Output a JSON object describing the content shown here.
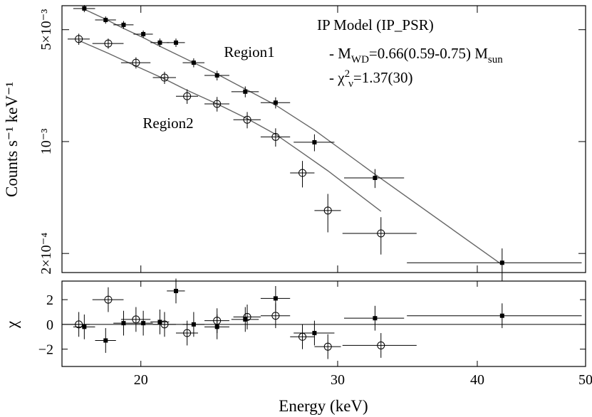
{
  "chart_data": {
    "type": "scatter",
    "xlabel": "Energy (keV)",
    "ylabel": "Counts s⁻¹ keV⁻¹",
    "xscale": "log",
    "yscale": "log",
    "xlim": [
      17,
      50
    ],
    "xticks": [
      20,
      30,
      40,
      50
    ],
    "ylim": [
      0.000152,
      0.00706
    ],
    "yticks": [
      {
        "value": 0.005,
        "label": "5×10⁻³"
      },
      {
        "value": 0.001,
        "label": "10⁻³"
      },
      {
        "value": 0.0002,
        "label": "2×10⁻⁴"
      }
    ],
    "annotation": {
      "title": "IP Model (IP_PSR)",
      "line1": [
        "- M",
        "WD",
        "=0.66(0.59-0.75) M",
        "sun"
      ],
      "line2": [
        "- χ",
        "2",
        "ν",
        "=1.37(30)"
      ]
    },
    "model_color": "#666666",
    "residual_panel": {
      "ylabel": "χ",
      "ylim": [
        -3.4,
        3.5
      ],
      "yticks": [
        {
          "value": 2,
          "label": "2"
        },
        0,
        {
          "value": -2,
          "label": "−2"
        }
      ]
    },
    "series": [
      {
        "name": "Region1",
        "marker": "square",
        "color": "#000000",
        "x": [
          17.8,
          18.6,
          19.3,
          20.1,
          20.8,
          21.5,
          22.3,
          23.4,
          24.8,
          26.4,
          28.6,
          32.4,
          42.1
        ],
        "xerr": [
          0.4,
          0.4,
          0.4,
          0.4,
          0.4,
          0.4,
          0.5,
          0.6,
          0.7,
          0.8,
          1.2,
          2.0,
          7.5
        ],
        "values": [
          0.00678,
          0.00575,
          0.00536,
          0.00469,
          0.00415,
          0.00415,
          0.00311,
          0.00259,
          0.00205,
          0.00175,
          0.00099,
          0.000593,
          0.000175
        ],
        "yerr": [
          0.00035,
          0.0003,
          0.0003,
          0.00025,
          0.00025,
          0.00025,
          0.0002,
          0.00018,
          0.00016,
          0.00014,
          0.00012,
          8e-05,
          4e-05
        ],
        "model": [
          0.00671,
          0.00581,
          0.00509,
          0.00446,
          0.00394,
          0.00352,
          0.00311,
          0.00264,
          0.00213,
          0.00169,
          0.00118,
          0.000625,
          0.00017
        ],
        "residuals": [
          -0.2,
          -1.3,
          0.1,
          0.1,
          0.2,
          2.7,
          0,
          -0.2,
          0.4,
          2.1,
          -0.7,
          0.5,
          0.7
        ],
        "residual_err": [
          1,
          1,
          1,
          1,
          1,
          1,
          1,
          1,
          1,
          1,
          1,
          1,
          1
        ]
      },
      {
        "name": "Region2",
        "marker": "circle",
        "color": "#000000",
        "x": [
          17.6,
          18.7,
          19.8,
          21.0,
          22.0,
          23.4,
          24.9,
          26.4,
          27.9,
          29.4,
          32.8
        ],
        "xerr": [
          0.4,
          0.6,
          0.6,
          0.5,
          0.5,
          0.6,
          0.7,
          0.8,
          0.7,
          0.8,
          2.5
        ],
        "values": [
          0.00437,
          0.0041,
          0.00311,
          0.00251,
          0.00192,
          0.00172,
          0.00137,
          0.00107,
          0.000637,
          0.000371,
          0.000267
        ],
        "yerr": [
          0.00035,
          0.0003,
          0.00025,
          0.00022,
          0.0002,
          0.00018,
          0.00016,
          0.00014,
          0.00012,
          0.0001,
          7e-05
        ],
        "model": [
          0.00428,
          0.00356,
          0.00296,
          0.00246,
          0.00209,
          0.00172,
          0.00139,
          0.00111,
          0.000849,
          0.000657,
          0.000367
        ],
        "residuals": [
          0,
          2.0,
          0.4,
          0,
          -0.7,
          0.3,
          0.6,
          0.7,
          -1.0,
          -1.8,
          -1.7
        ],
        "residual_err": [
          1,
          1,
          1,
          1,
          1,
          1,
          1,
          1,
          1,
          1,
          1
        ]
      }
    ]
  }
}
